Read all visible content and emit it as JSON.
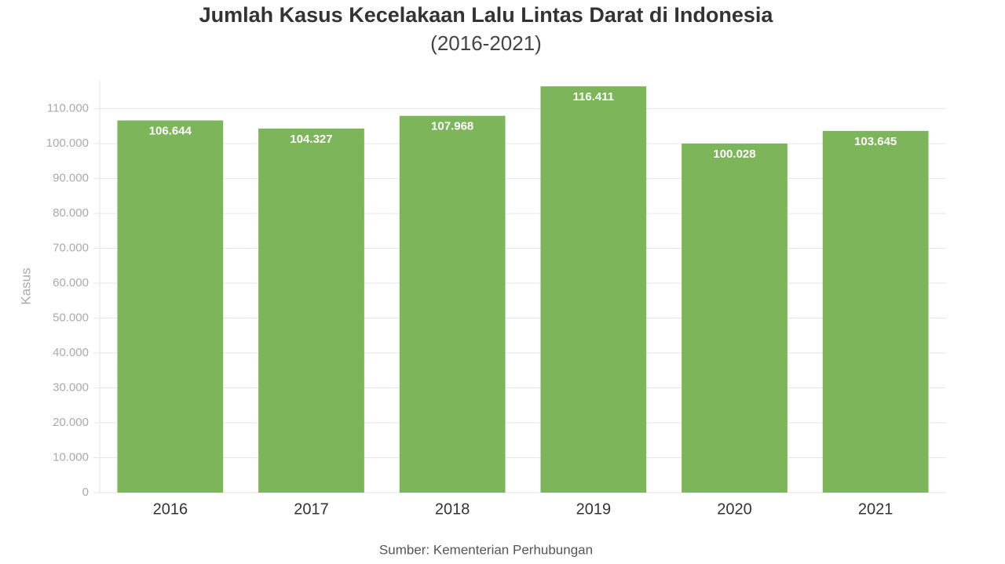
{
  "chart_data": {
    "type": "bar",
    "title": "Jumlah Kasus Kecelakaan Lalu Lintas Darat di Indonesia",
    "subtitle": "(2016-2021)",
    "y_label": "Kasus",
    "source": "Sumber: Kementerian Perhubungan",
    "categories": [
      "2016",
      "2017",
      "2018",
      "2019",
      "2020",
      "2021"
    ],
    "values": [
      106644,
      104327,
      107968,
      116411,
      100028,
      103645
    ],
    "value_labels": [
      "106.644",
      "104.327",
      "107.968",
      "116.411",
      "100.028",
      "103.645"
    ],
    "color": "#7db65a",
    "ylim": [
      0,
      118000
    ],
    "yticks": [
      0,
      {
        "value": 10000,
        "label": "10.000"
      },
      {
        "value": 20000,
        "label": "20.000"
      },
      {
        "value": 30000,
        "label": "30.000"
      },
      {
        "value": 40000,
        "label": "40.000"
      },
      {
        "value": 50000,
        "label": "50.000"
      },
      {
        "value": 60000,
        "label": "60.000"
      },
      {
        "value": 70000,
        "label": "70.000"
      },
      {
        "value": 80000,
        "label": "80.000"
      },
      {
        "value": 90000,
        "label": "90.000"
      },
      {
        "value": 100000,
        "label": "100.000"
      },
      {
        "value": 110000,
        "label": "110.000"
      }
    ],
    "grid": true
  }
}
